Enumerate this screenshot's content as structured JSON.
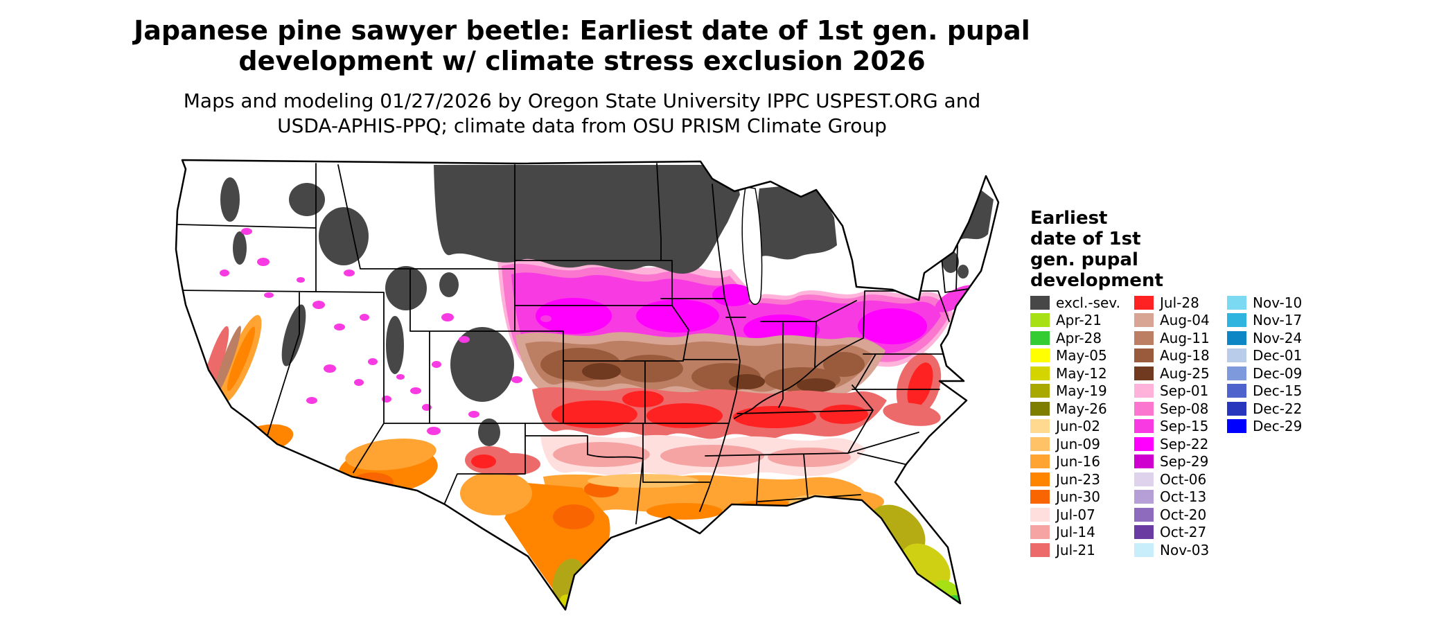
{
  "header": {
    "title_line1": "Japanese pine sawyer beetle: Earliest date of 1st gen. pupal",
    "title_line2": "development w/ climate stress exclusion 2026",
    "subtitle_line1": "Maps and modeling 01/27/2026 by Oregon State University IPPC USPEST.ORG and",
    "subtitle_line2": "USDA-APHIS-PPQ; climate data from OSU PRISM Climate Group"
  },
  "map": {
    "region": "Continental United States",
    "excluded_label": "excl.-sev.",
    "excluded_color": "#474747"
  },
  "legend": {
    "title": "Earliest\ndate of 1st\ngen. pupal\ndevelopment",
    "columns": [
      {
        "items": [
          {
            "label": "excl.-sev.",
            "color": "#474747"
          },
          {
            "label": "Apr-21",
            "color": "#a8e016"
          },
          {
            "label": "Apr-28",
            "color": "#33cc33"
          },
          {
            "label": "May-05",
            "color": "#ffff00"
          },
          {
            "label": "May-12",
            "color": "#d4d400"
          },
          {
            "label": "May-19",
            "color": "#a8a800"
          },
          {
            "label": "May-26",
            "color": "#7d7d00"
          },
          {
            "label": "Jun-02",
            "color": "#ffd98f"
          },
          {
            "label": "Jun-09",
            "color": "#ffc266"
          },
          {
            "label": "Jun-16",
            "color": "#ffa333"
          },
          {
            "label": "Jun-23",
            "color": "#ff8400"
          },
          {
            "label": "Jun-30",
            "color": "#f96500"
          },
          {
            "label": "Jul-07",
            "color": "#ffdede"
          },
          {
            "label": "Jul-14",
            "color": "#f5a3a3"
          },
          {
            "label": "Jul-21",
            "color": "#ed6a6a"
          }
        ]
      },
      {
        "items": [
          {
            "label": "Jul-28",
            "color": "#ff2222"
          },
          {
            "label": "Aug-04",
            "color": "#d8a493"
          },
          {
            "label": "Aug-11",
            "color": "#bc7f63"
          },
          {
            "label": "Aug-18",
            "color": "#9a5b3c"
          },
          {
            "label": "Aug-25",
            "color": "#6f3a1f"
          },
          {
            "label": "Sep-01",
            "color": "#ffb3da"
          },
          {
            "label": "Sep-08",
            "color": "#fb76cf"
          },
          {
            "label": "Sep-15",
            "color": "#f83ae3"
          },
          {
            "label": "Sep-22",
            "color": "#ff00ff"
          },
          {
            "label": "Sep-29",
            "color": "#cf00cf"
          },
          {
            "label": "Oct-06",
            "color": "#ded2ec"
          },
          {
            "label": "Oct-13",
            "color": "#b69fd6"
          },
          {
            "label": "Oct-20",
            "color": "#8e6bbd"
          },
          {
            "label": "Oct-27",
            "color": "#6a3ba1"
          },
          {
            "label": "Nov-03",
            "color": "#c9eefb"
          }
        ]
      },
      {
        "items": [
          {
            "label": "Nov-10",
            "color": "#7cd9f2"
          },
          {
            "label": "Nov-17",
            "color": "#2fb4e0"
          },
          {
            "label": "Nov-24",
            "color": "#0c86c4"
          },
          {
            "label": "Dec-01",
            "color": "#b9cdeb"
          },
          {
            "label": "Dec-09",
            "color": "#7f99dd"
          },
          {
            "label": "Dec-15",
            "color": "#4f63cd"
          },
          {
            "label": "Dec-22",
            "color": "#2736bd"
          },
          {
            "label": "Dec-29",
            "color": "#0000ff"
          }
        ]
      }
    ]
  }
}
